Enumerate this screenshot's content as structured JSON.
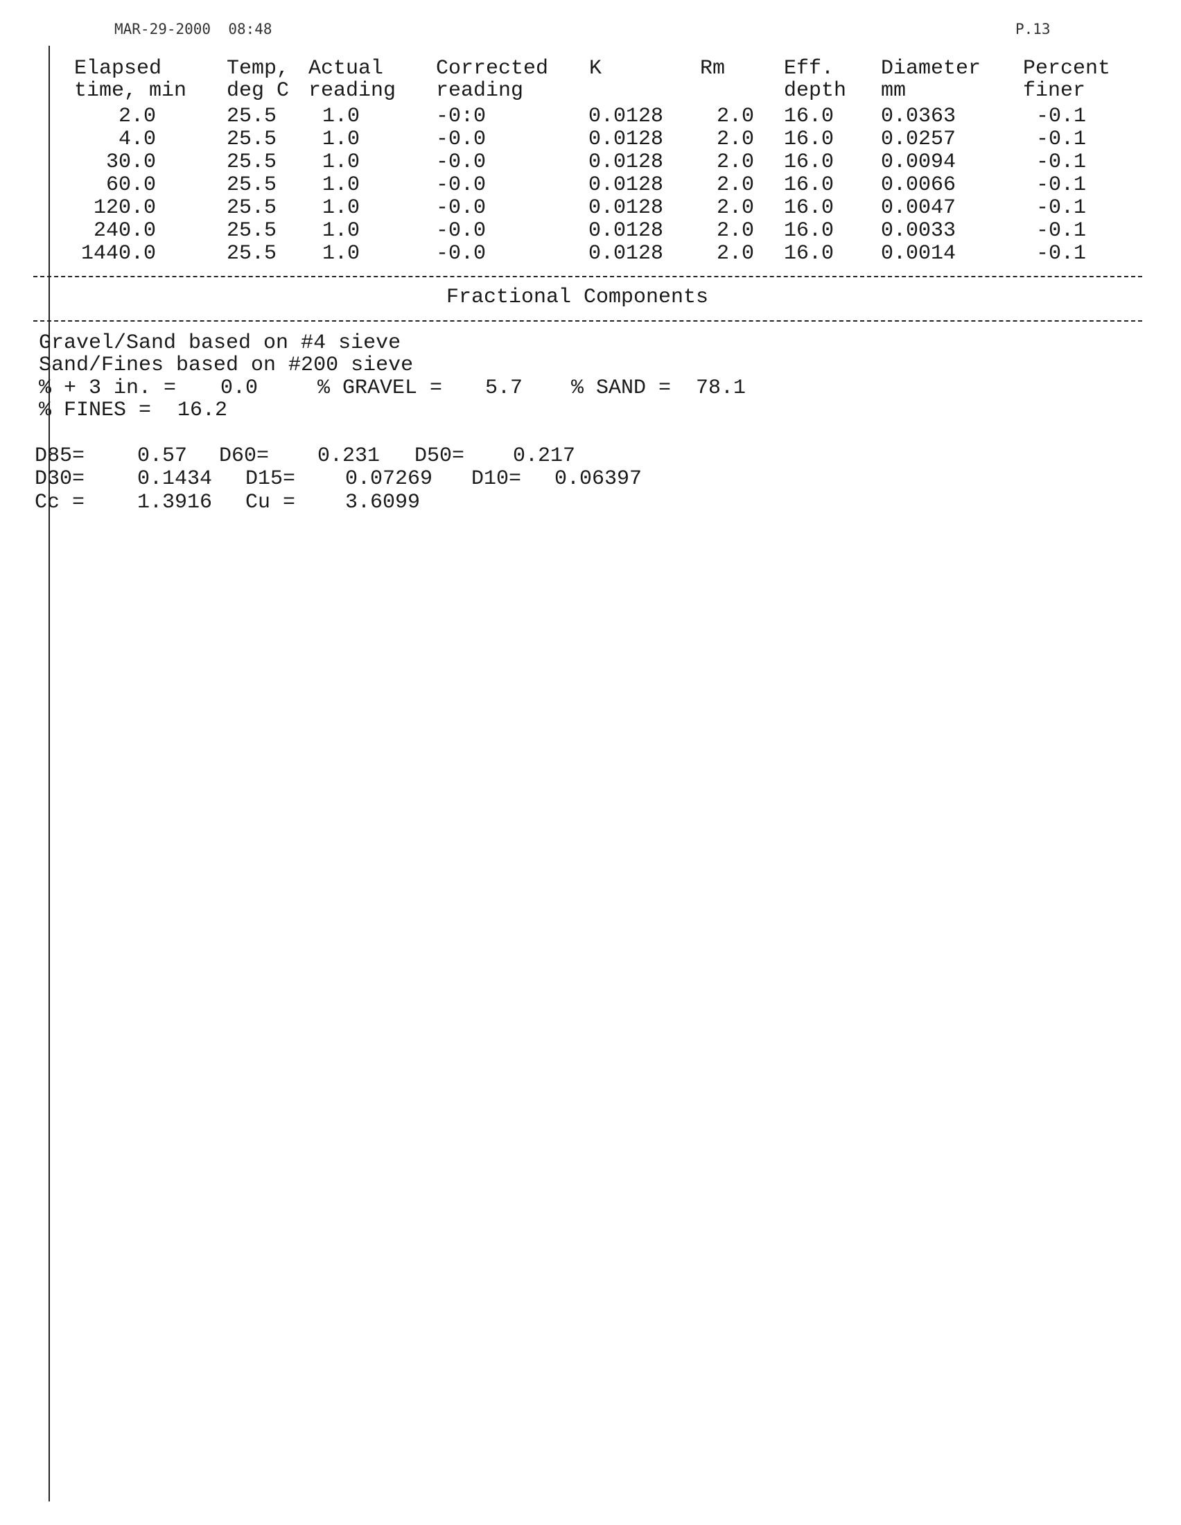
{
  "fax_header": {
    "datetime": "MAR-29-2000  08:48",
    "page": "P.13"
  },
  "table": {
    "headers": [
      [
        "Elapsed",
        "time, min"
      ],
      [
        "Temp,",
        "deg C"
      ],
      [
        "Actual",
        "reading"
      ],
      [
        "Corrected",
        "reading"
      ],
      [
        "K",
        ""
      ],
      [
        "Rm",
        ""
      ],
      [
        "Eff.",
        "depth"
      ],
      [
        "Diameter",
        "mm"
      ],
      [
        "Percent",
        "finer"
      ]
    ],
    "rows": [
      [
        "2.0",
        "25.5",
        "1.0",
        "-0:0",
        "0.0128",
        "2.0",
        "16.0",
        "0.0363",
        "-0.1"
      ],
      [
        "4.0",
        "25.5",
        "1.0",
        "-0.0",
        "0.0128",
        "2.0",
        "16.0",
        "0.0257",
        "-0.1"
      ],
      [
        "30.0",
        "25.5",
        "1.0",
        "-0.0",
        "0.0128",
        "2.0",
        "16.0",
        "0.0094",
        "-0.1"
      ],
      [
        "60.0",
        "25.5",
        "1.0",
        "-0.0",
        "0.0128",
        "2.0",
        "16.0",
        "0.0066",
        "-0.1"
      ],
      [
        "120.0",
        "25.5",
        "1.0",
        "-0.0",
        "0.0128",
        "2.0",
        "16.0",
        "0.0047",
        "-0.1"
      ],
      [
        "240.0",
        "25.5",
        "1.0",
        "-0.0",
        "0.0128",
        "2.0",
        "16.0",
        "0.0033",
        "-0.1"
      ],
      [
        "1440.0",
        "25.5",
        "1.0",
        "-0.0",
        "0.0128",
        "2.0",
        "16.0",
        "0.0014",
        "-0.1"
      ]
    ]
  },
  "section_title": "Fractional Components",
  "fractional": {
    "line1": "Gravel/Sand based on #4 sieve",
    "line2": "Sand/Fines based on #200 sieve",
    "plus3_label": "% + 3 in. =",
    "plus3_value": "0.0",
    "gravel_label": "% GRAVEL =",
    "gravel_value": "5.7",
    "sand_label": "% SAND =",
    "sand_value": "78.1",
    "fines_label": "% FINES =",
    "fines_value": "16.2"
  },
  "gradation": {
    "d85_label": "D85=",
    "d85": "0.57",
    "d60_label": "D60=",
    "d60": "0.231",
    "d50_label": "D50=",
    "d50": "0.217",
    "d30_label": "D30=",
    "d30": "0.1434",
    "d15_label": "D15=",
    "d15": "0.07269",
    "d10_label": "D10=",
    "d10": "0.06397",
    "cc_label": "Cc =",
    "cc": "1.3916",
    "cu_label": "Cu =",
    "cu": "3.6099"
  }
}
